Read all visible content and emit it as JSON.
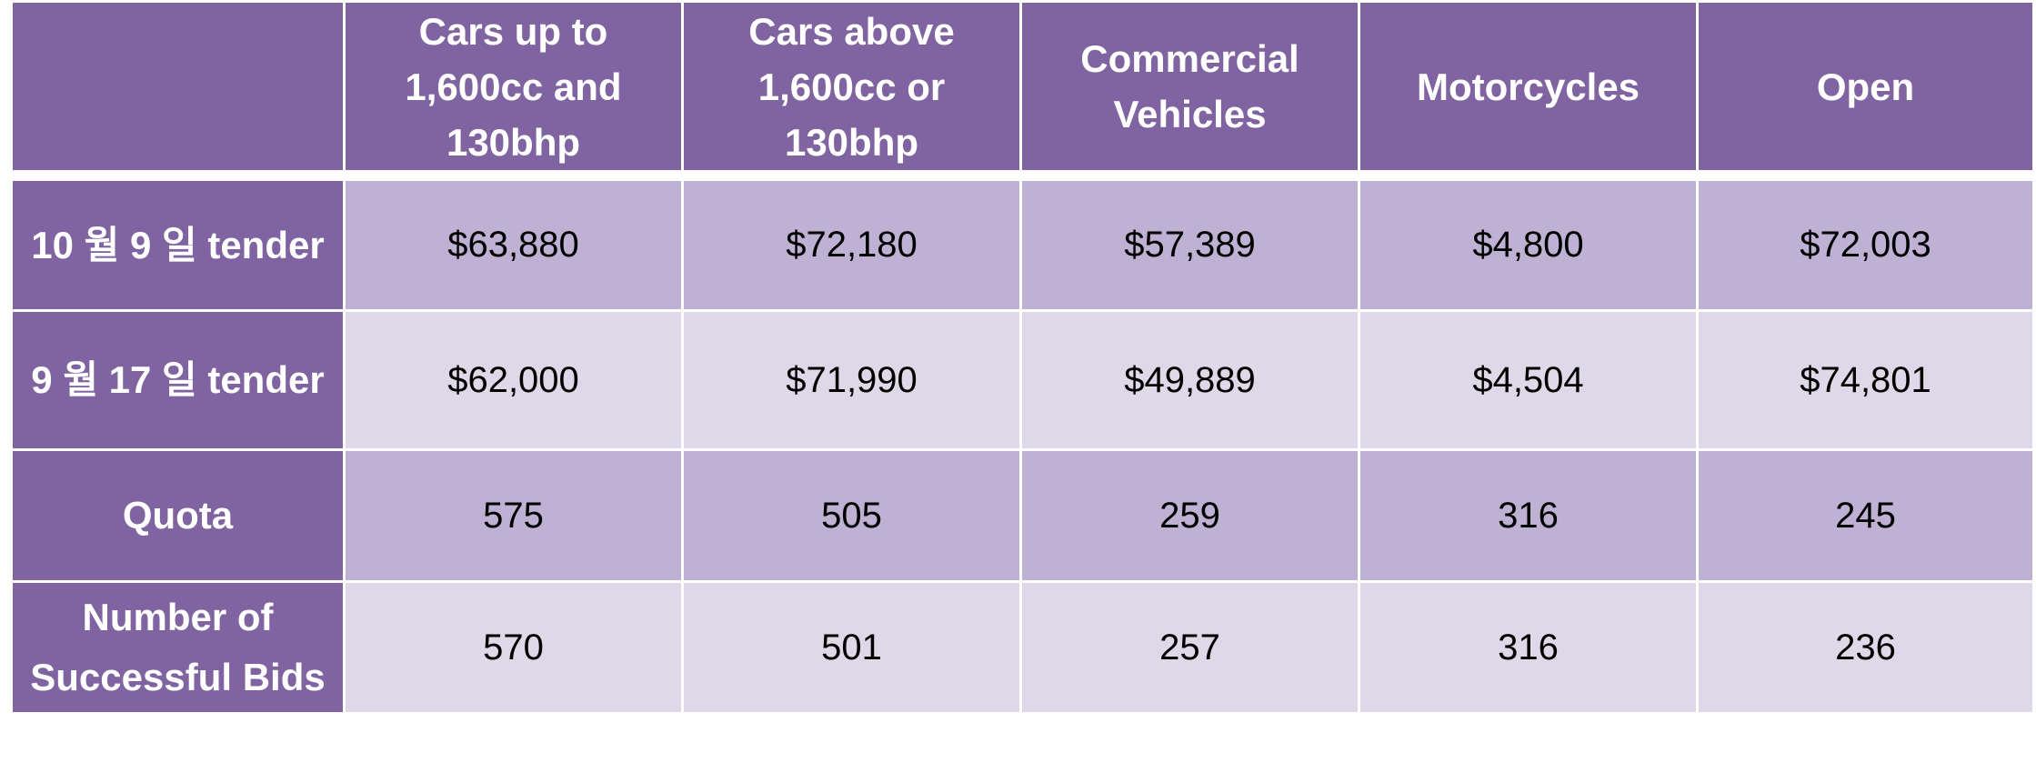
{
  "table": {
    "corner": "",
    "headers": [
      "Cars up to 1,600cc and 130bhp",
      "Cars above 1,600cc or 130bhp",
      "Commercial Vehicles",
      "Motorcycles",
      "Open"
    ],
    "rows": [
      {
        "label": "10 월 9 일 tender",
        "values": [
          "$63,880",
          "$72,180",
          "$57,389",
          "$4,800",
          "$72,003"
        ]
      },
      {
        "label": "9 월 17 일 tender",
        "values": [
          "$62,000",
          "$71,990",
          "$49,889",
          "$4,504",
          "$74,801"
        ]
      },
      {
        "label": "Quota",
        "values": [
          "575",
          "505",
          "259",
          "316",
          "245"
        ]
      },
      {
        "label": "Number of Successful Bids",
        "values": [
          "570",
          "501",
          "257",
          "316",
          "236"
        ]
      }
    ]
  },
  "colors": {
    "header_bg": "#8064a2",
    "band_dark": "#bfb1d3",
    "band_light": "#dfd8e8",
    "header_text": "#ffffff"
  }
}
